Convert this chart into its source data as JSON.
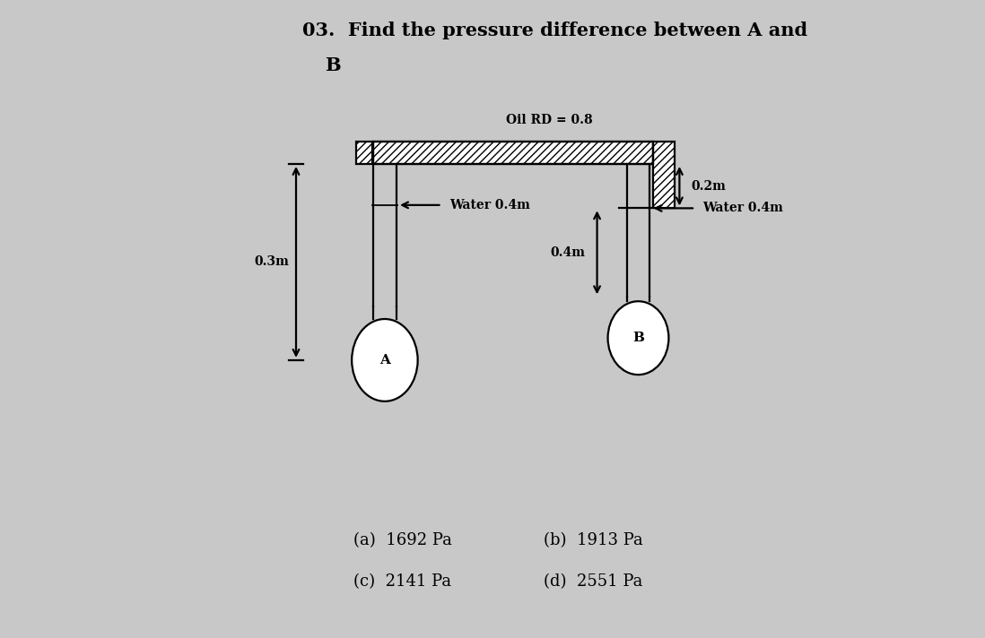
{
  "title_line1": "03.  Find the pressure difference between A and",
  "title_line2": "B",
  "bg_color": "#c8c8c8",
  "panel_bg": "#e0e0e0",
  "line_color": "#000000",
  "oil_label": "Oil RD = 0.8",
  "water_label_left": "Water 0.4m",
  "water_label_right": "Water 0.4m",
  "dim_03": "0.3m",
  "dim_02": "0.2m",
  "dim_04": "0.4m",
  "label_A": "A",
  "label_B": "B",
  "answer_a": "(a)  1692 Pa",
  "answer_b": "(b)  1913 Pa",
  "answer_c": "(c)  2141 Pa",
  "answer_d": "(d)  2551 Pa",
  "font_size_title": 15,
  "font_size_label": 10,
  "font_size_answer": 13
}
